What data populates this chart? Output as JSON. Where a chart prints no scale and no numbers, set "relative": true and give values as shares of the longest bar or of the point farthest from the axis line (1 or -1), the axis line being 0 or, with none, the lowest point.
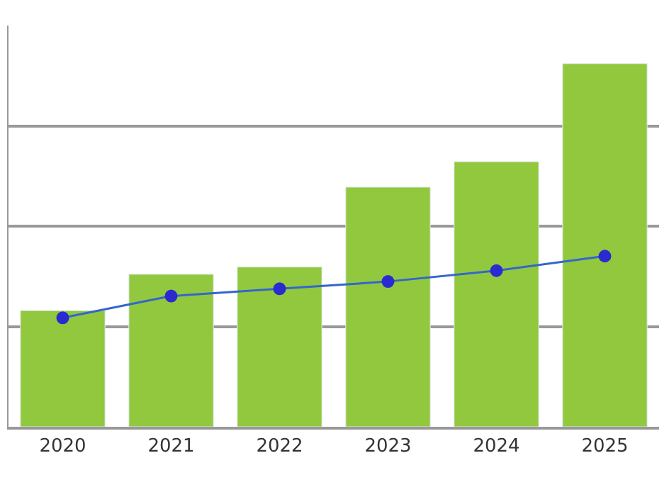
{
  "chart_data": {
    "type": "bar",
    "relative": true,
    "categories": [
      "2020",
      "2021",
      "2022",
      "2023",
      "2024",
      "2025"
    ],
    "series": [
      {
        "color": "#92c83e",
        "values": [
          0.32,
          0.42,
          0.44,
          0.66,
          0.73,
          1.0
        ]
      },
      {
        "type": "line",
        "color": "#3366cc",
        "values": [
          0.3,
          0.36,
          0.38,
          0.4,
          0.43,
          0.47
        ]
      }
    ],
    "marker": "circle",
    "line_style": "solid",
    "grid": "y"
  }
}
